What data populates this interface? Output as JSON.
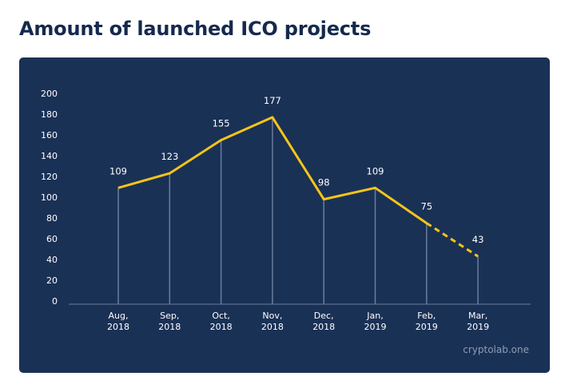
{
  "chart_data": {
    "type": "line",
    "title": "Amount of launched ICO projects",
    "categories": [
      [
        "Aug,",
        "2018"
      ],
      [
        "Sep,",
        "2018"
      ],
      [
        "Oct,",
        "2018"
      ],
      [
        "Nov,",
        "2018"
      ],
      [
        "Dec,",
        "2018"
      ],
      [
        "Jan,",
        "2019"
      ],
      [
        "Feb,",
        "2019"
      ],
      [
        "Mar,",
        "2019"
      ]
    ],
    "values": [
      109,
      123,
      155,
      177,
      98,
      109,
      75,
      43
    ],
    "projected_from_index": 6,
    "ylim": [
      0,
      200
    ],
    "yticks": [
      0,
      20,
      40,
      60,
      80,
      100,
      120,
      140,
      160,
      180,
      200
    ],
    "xlabel": "",
    "ylabel": "",
    "grid": false,
    "colors": {
      "line": "#f5c518",
      "background": "#1a3156",
      "drop_lines": "#6b7d9c",
      "text": "#ffffff"
    }
  },
  "source_credit": "cryptolab.one"
}
